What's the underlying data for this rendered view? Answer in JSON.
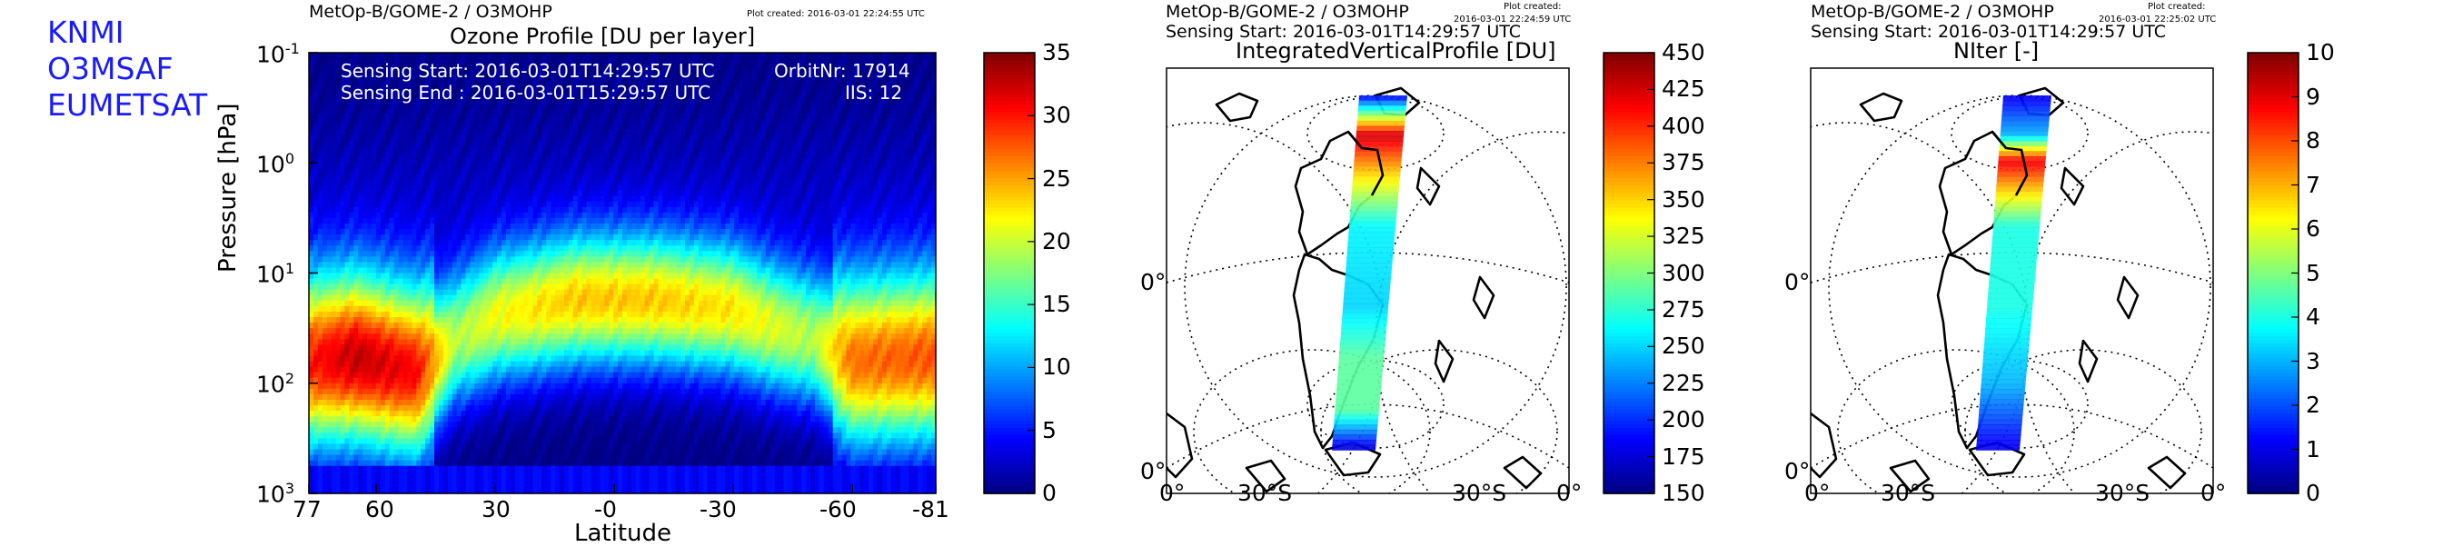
{
  "organizations": [
    "KNMI",
    "O3MSAF",
    "EUMETSAT"
  ],
  "panels": [
    {
      "header": "MetOp-B/GOME-2 / O3MOHP",
      "plot_created_label": "Plot created: 2016-03-01 22:24:55 UTC",
      "title": "Ozone Profile [DU per layer]",
      "sensing_start": "Sensing Start: 2016-03-01T14:29:57 UTC",
      "sensing_end": "Sensing End  : 2016-03-01T15:29:57 UTC",
      "orbit": "OrbitNr: 17914",
      "iis": "IIS: 12"
    },
    {
      "header": "MetOp-B/GOME-2 / O3MOHP",
      "plot_created_label": "Plot created:",
      "plot_created_time": "2016-03-01 22:24:59 UTC",
      "sensing_start": "Sensing Start: 2016-03-01T14:29:57 UTC",
      "title": "IntegratedVerticalProfile [DU]",
      "map_labels": [
        "0°",
        "0°",
        "0°",
        "30°S",
        "30°S",
        "0°"
      ]
    },
    {
      "header": "MetOp-B/GOME-2 / O3MOHP",
      "plot_created_label": "Plot created:",
      "plot_created_time": "2016-03-01 22:25:02 UTC",
      "sensing_start": "Sensing Start: 2016-03-01T14:29:57 UTC",
      "title": "NIter [-]",
      "map_labels": [
        "0°",
        "0°",
        "0°",
        "30°S",
        "30°S",
        "0°"
      ]
    }
  ],
  "chart_data": [
    {
      "type": "heatmap",
      "title": "Ozone Profile [DU per layer]",
      "xlabel": "Latitude",
      "ylabel": "Pressure [hPa]",
      "x_ticks": [
        "77",
        "60",
        "30",
        "-0",
        "-30",
        "-60",
        "-81"
      ],
      "x_range": [
        77,
        -81
      ],
      "y_scale": "log",
      "y_range_hPa": [
        1000,
        0.1
      ],
      "y_ticks": [
        "10^-1",
        "10^0",
        "10^1",
        "10^2",
        "10^3"
      ],
      "colorbar": {
        "range": [
          0,
          35
        ],
        "ticks": [
          "0",
          "5",
          "10",
          "15",
          "20",
          "25",
          "30",
          "35"
        ],
        "colormap": "jet"
      },
      "ozone_maximum_layer": [
        {
          "latitude": 77,
          "pressure_hPa": 65,
          "value": 29
        },
        {
          "latitude": 65,
          "pressure_hPa": 60,
          "value": 32
        },
        {
          "latitude": 50,
          "pressure_hPa": 80,
          "value": 30
        },
        {
          "latitude": 40,
          "pressure_hPa": 40,
          "value": 18
        },
        {
          "latitude": 30,
          "pressure_hPa": 25,
          "value": 20
        },
        {
          "latitude": 10,
          "pressure_hPa": 18,
          "value": 22
        },
        {
          "latitude": -10,
          "pressure_hPa": 18,
          "value": 22
        },
        {
          "latitude": -30,
          "pressure_hPa": 22,
          "value": 21
        },
        {
          "latitude": -50,
          "pressure_hPa": 40,
          "value": 18
        },
        {
          "latitude": -60,
          "pressure_hPa": 65,
          "value": 26
        },
        {
          "latitude": -81,
          "pressure_hPa": 60,
          "value": 27
        }
      ]
    },
    {
      "type": "heatmap",
      "title": "IntegratedVerticalProfile [DU]",
      "colorbar": {
        "range": [
          150,
          450
        ],
        "ticks": [
          "150",
          "175",
          "200",
          "225",
          "250",
          "275",
          "300",
          "325",
          "350",
          "375",
          "400",
          "425",
          "450"
        ],
        "colormap": "jet"
      },
      "swath": [
        {
          "latitude": 60,
          "value": 180
        },
        {
          "latitude": 45,
          "value": 430
        },
        {
          "latitude": 30,
          "value": 350
        },
        {
          "latitude": 10,
          "value": 260
        },
        {
          "latitude": -20,
          "value": 250
        },
        {
          "latitude": -40,
          "value": 290
        },
        {
          "latitude": -60,
          "value": 290
        },
        {
          "latitude": -75,
          "value": 170
        }
      ]
    },
    {
      "type": "heatmap",
      "title": "NIter [-]",
      "colorbar": {
        "range": [
          0,
          10
        ],
        "ticks": [
          "0",
          "1",
          "2",
          "3",
          "4",
          "5",
          "6",
          "7",
          "8",
          "9",
          "10"
        ],
        "colormap": "jet"
      },
      "swath": [
        {
          "latitude": 60,
          "value": 1
        },
        {
          "latitude": 45,
          "value": 3
        },
        {
          "latitude": 35,
          "value": 9
        },
        {
          "latitude": 10,
          "value": 4
        },
        {
          "latitude": -20,
          "value": 4
        },
        {
          "latitude": -50,
          "value": 3
        },
        {
          "latitude": -75,
          "value": 1
        }
      ]
    }
  ]
}
